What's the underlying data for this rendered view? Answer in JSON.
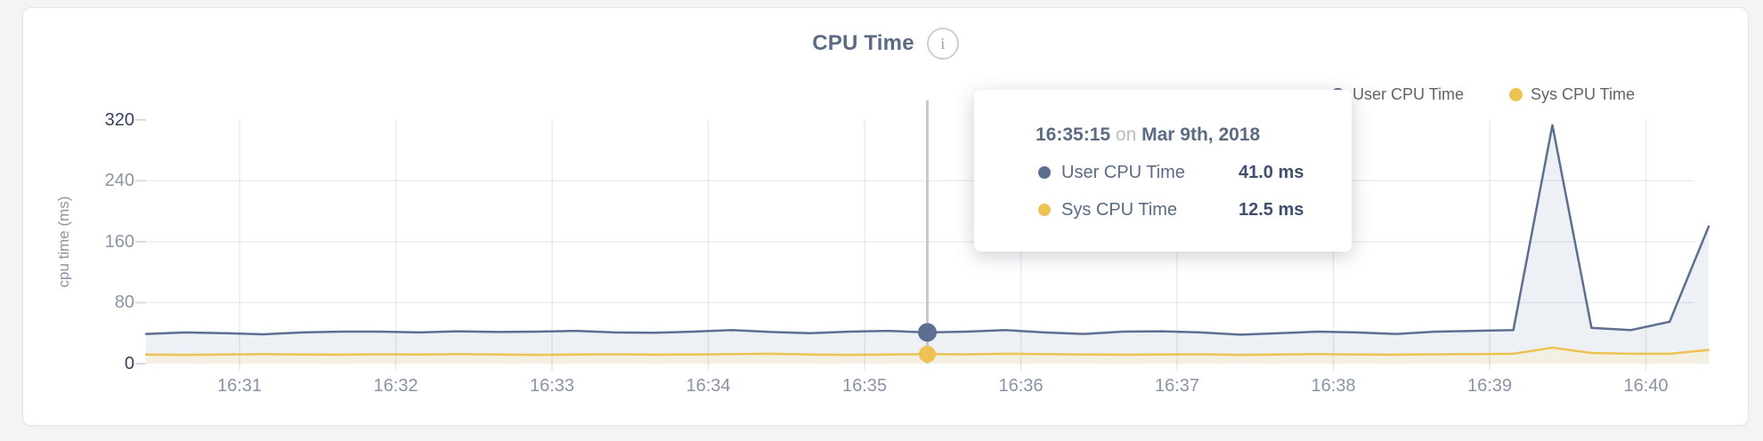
{
  "header": {
    "title": "CPU Time",
    "info_glyph": "i"
  },
  "legend": [
    {
      "label": "User CPU Time",
      "color": "#5d6f90"
    },
    {
      "label": "Sys CPU Time",
      "color": "#edc253"
    }
  ],
  "tooltip": {
    "time": "16:35:15",
    "connector": "on",
    "date": "Mar 9th, 2018",
    "rows": [
      {
        "label": "User CPU Time",
        "value": "41.0 ms",
        "color": "#5d6f90"
      },
      {
        "label": "Sys CPU Time",
        "value": "12.5 ms",
        "color": "#edc253"
      }
    ]
  },
  "chart_data": {
    "type": "area",
    "title": "CPU Time",
    "xlabel": "",
    "ylabel": "cpu time (ms)",
    "ylim": [
      0,
      320
    ],
    "y_ticks": [
      320,
      240,
      160,
      80,
      0
    ],
    "y_ticks_emphasis": [
      320,
      0
    ],
    "x_ticks": [
      "16:31",
      "16:32",
      "16:33",
      "16:34",
      "16:35",
      "16:36",
      "16:37",
      "16:38",
      "16:39",
      "16:40"
    ],
    "x_start_time": "16:30:15",
    "sample_interval_seconds": 15,
    "date": "Mar 9th, 2018",
    "grid": true,
    "legend_position": "top-right",
    "series": [
      {
        "name": "User CPU Time",
        "unit": "ms",
        "color": "#5d6f90",
        "fill": "#edf0f5",
        "values": [
          39,
          41,
          40,
          38.5,
          41,
          42,
          42,
          41,
          42.5,
          41.5,
          42,
          43,
          41,
          40.5,
          42,
          44,
          41.5,
          40,
          42,
          43,
          41,
          42,
          44,
          41,
          39,
          42,
          42.5,
          41,
          38,
          40,
          42,
          41,
          39,
          42,
          43,
          44,
          313,
          47,
          44,
          55,
          180
        ]
      },
      {
        "name": "Sys CPU Time",
        "unit": "ms",
        "color": "#edc253",
        "fill": "#f4f0e1",
        "values": [
          12,
          11.5,
          12,
          12.5,
          12,
          11.8,
          12.2,
          12,
          12.5,
          12,
          11.5,
          12,
          12.3,
          11.8,
          12,
          12.5,
          13,
          12,
          11.5,
          12,
          12.5,
          12.2,
          13,
          12.5,
          12,
          11.8,
          12,
          12.3,
          11.5,
          12,
          12.5,
          12,
          11.8,
          12.2,
          12.5,
          13,
          21,
          14,
          13,
          13,
          18
        ]
      }
    ],
    "hover": {
      "index": 20,
      "time": "16:35:15",
      "values": [
        41.0,
        12.5
      ]
    }
  }
}
